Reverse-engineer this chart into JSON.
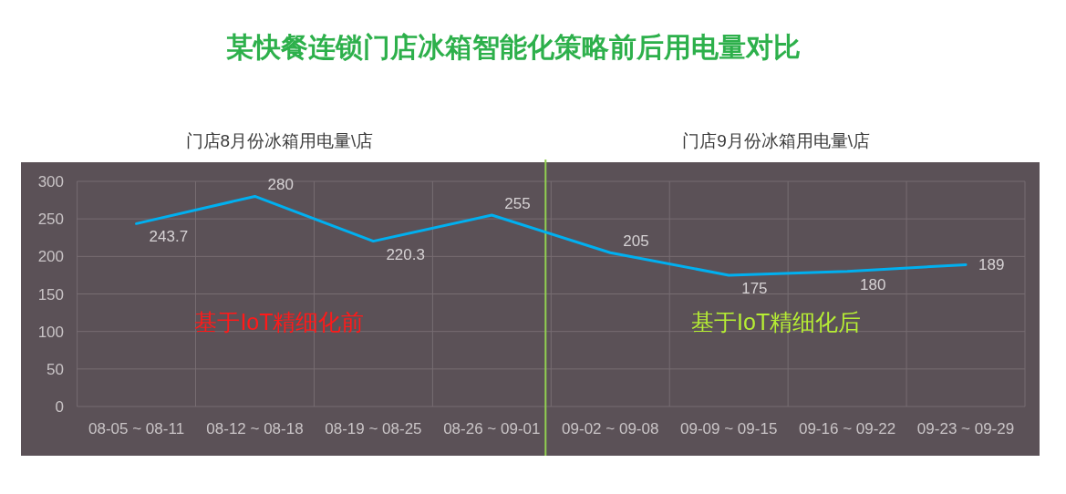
{
  "chart_data": {
    "type": "line",
    "title": "某快餐连锁门店冰箱智能化策略前后用电量对比",
    "annotations": [
      "门店8月份冰箱用电量\\店",
      "门店9月份冰箱用电量\\店",
      "基于IoT精细化前",
      "基于IoT精细化后"
    ],
    "categories": [
      "08-05 ~ 08-11",
      "08-12 ~ 08-18",
      "08-19 ~ 08-25",
      "08-26 ~ 09-01",
      "09-02 ~ 09-08",
      "09-09 ~ 09-15",
      "09-16 ~ 09-22",
      "09-23 ~ 09-29"
    ],
    "series": [
      {
        "color": "#00b0f0",
        "values": [
          243.7,
          280,
          220.3,
          255,
          205,
          175,
          180,
          189
        ]
      }
    ],
    "ylim": [
      0,
      300
    ],
    "yticks": [
      0,
      50,
      100,
      150,
      200,
      250,
      300
    ],
    "grid": true,
    "data_labels": true,
    "marker": "none",
    "line_style": "solid",
    "ref_lines": [
      {
        "axis": "x",
        "value": "08-26 ~ 09-01",
        "color": "#92d050"
      }
    ]
  }
}
